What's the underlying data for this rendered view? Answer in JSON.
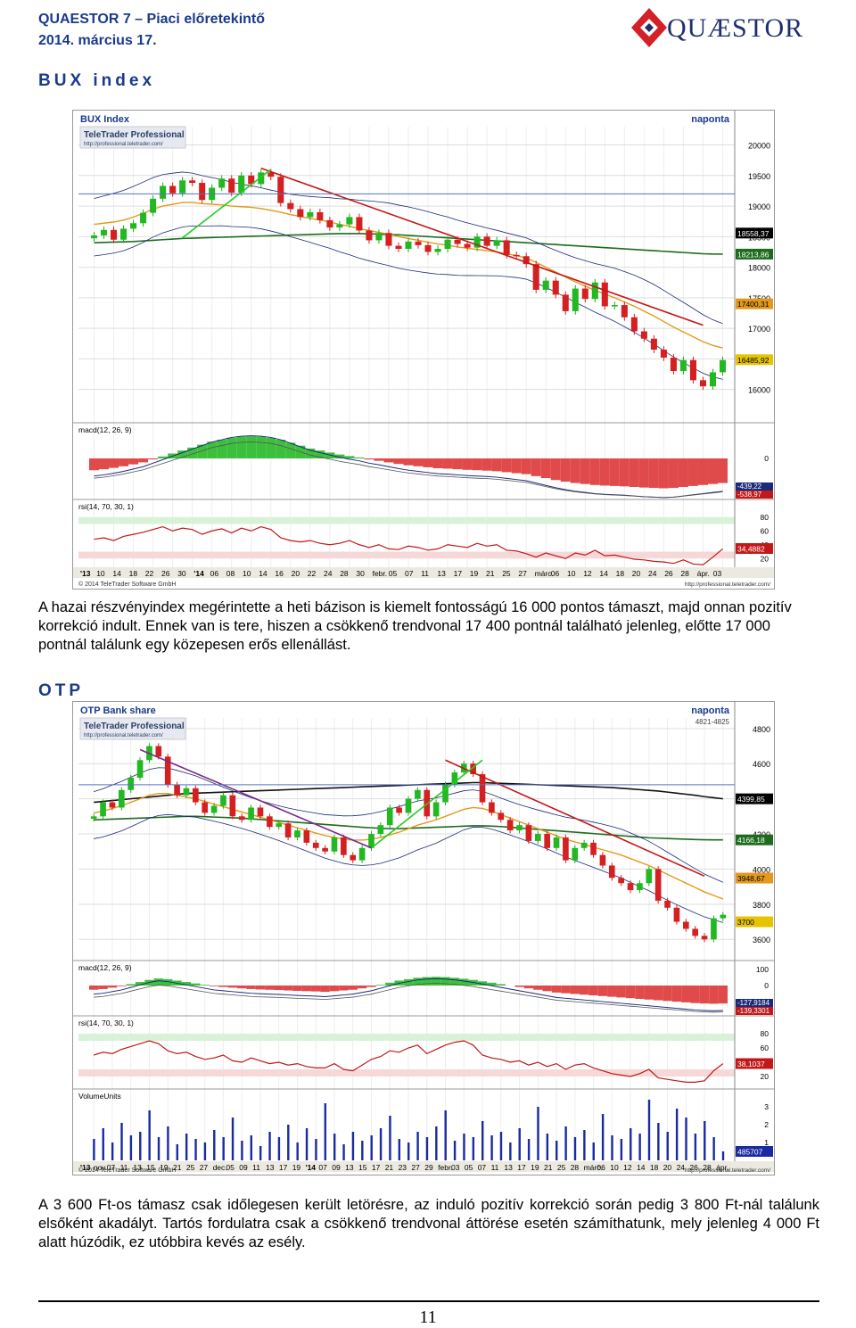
{
  "header": {
    "title": "QUAESTOR 7 – Piaci előretekintő",
    "date": "2014. március 17.",
    "logo_text": "QUÆSTOR"
  },
  "bux": {
    "section_title": "BUX index",
    "paragraph": "A hazai részvényindex megérintette a heti bázison is kiemelt fontosságú 16 000 pontos támaszt, majd onnan pozitív korrekció indult. Ennek van is tere, hiszen a csökkenő trendvonal 17 400 pontnál található jelenleg, előtte 17 000 pontnál találunk egy közepesen erős ellenállást."
  },
  "otp": {
    "section_title": "OTP",
    "paragraph": "A 3 600 Ft-os támasz csak időlegesen került letörésre, az induló pozitív korrekció során pedig 3 800 Ft-nál találunk elsőként akadályt. Tartós fordulatra csak a csökkenő trendvonal áttörése esetén számíthatunk, mely jelenleg 4 000 Ft alatt húzódik, ez utóbbira kevés az esély."
  },
  "page_number": "11",
  "chart_data": [
    {
      "type": "candlestick",
      "title": "BUX Index",
      "period": "naponta",
      "watermark": "TeleTrader Professional",
      "watermark_url": "http://professional.teletrader.com/",
      "price_ticks": [
        20000,
        19500,
        19000,
        18500,
        18000,
        17500,
        17000,
        16500,
        16000
      ],
      "price_labels": [
        "18558,37",
        "18213,86",
        "17400,31",
        "16485,92"
      ],
      "ylim": [
        15600,
        20300
      ],
      "closes": [
        18520,
        18610,
        18450,
        18630,
        18720,
        18890,
        19120,
        19330,
        19210,
        19420,
        19380,
        19100,
        19300,
        19450,
        19220,
        19500,
        19360,
        19550,
        19480,
        19050,
        18950,
        18820,
        18900,
        18770,
        18650,
        18700,
        18820,
        18600,
        18440,
        18560,
        18350,
        18300,
        18420,
        18360,
        18250,
        18300,
        18450,
        18380,
        18320,
        18500,
        18350,
        18440,
        18200,
        18180,
        18050,
        17630,
        17780,
        17550,
        17280,
        17650,
        17480,
        17750,
        17360,
        17380,
        17180,
        16950,
        16830,
        16650,
        16520,
        16300,
        16480,
        16150,
        16050,
        16280,
        16480
      ],
      "ma_orange": [
        18700,
        18720,
        18740,
        18770,
        18820,
        18880,
        18950,
        19000,
        19030,
        19060,
        19060,
        19040,
        19030,
        19020,
        19000,
        18990,
        18980,
        18960,
        18930,
        18900,
        18860,
        18830,
        18800,
        18770,
        18740,
        18700,
        18670,
        18630,
        18600,
        18570,
        18540,
        18500,
        18470,
        18440,
        18410,
        18380,
        18360,
        18330,
        18310,
        18290,
        18270,
        18250,
        18220,
        18190,
        18150,
        18080,
        18000,
        17920,
        17840,
        17760,
        17690,
        17620,
        17560,
        17500,
        17430,
        17360,
        17280,
        17200,
        17110,
        17020,
        16940,
        16860,
        16780,
        16720,
        16680
      ],
      "ma_green": [
        18400,
        18405,
        18410,
        18415,
        18420,
        18430,
        18440,
        18450,
        18460,
        18470,
        18475,
        18480,
        18485,
        18490,
        18495,
        18500,
        18505,
        18510,
        18515,
        18520,
        18525,
        18530,
        18535,
        18540,
        18545,
        18550,
        18550,
        18550,
        18545,
        18540,
        18535,
        18530,
        18520,
        18510,
        18500,
        18490,
        18480,
        18470,
        18460,
        18450,
        18440,
        18430,
        18420,
        18410,
        18400,
        18390,
        18380,
        18370,
        18360,
        18350,
        18340,
        18330,
        18320,
        18310,
        18300,
        18290,
        18280,
        18270,
        18260,
        18250,
        18240,
        18230,
        18220,
        18215,
        18214
      ],
      "macd_label": "macd(12, 26, 9)",
      "macd_ticks": [
        "0"
      ],
      "macd_values": [
        "-439,22",
        "-538,97"
      ],
      "macd_hist": [
        -60,
        -55,
        -48,
        -40,
        -30,
        -20,
        -5,
        10,
        25,
        40,
        55,
        70,
        85,
        95,
        105,
        110,
        112,
        110,
        105,
        95,
        80,
        65,
        50,
        40,
        30,
        20,
        12,
        5,
        -5,
        -12,
        -20,
        -28,
        -35,
        -40,
        -45,
        -50,
        -52,
        -55,
        -58,
        -60,
        -62,
        -65,
        -70,
        -75,
        -80,
        -90,
        -100,
        -110,
        -118,
        -125,
        -130,
        -135,
        -138,
        -140,
        -142,
        -145,
        -148,
        -150,
        -152,
        -150,
        -145,
        -140,
        -135,
        -130,
        -125
      ],
      "rsi_label": "rsi(14, 70, 30, 1)",
      "rsi_ticks": [
        80,
        60,
        40,
        20
      ],
      "rsi_value": "34,4882",
      "rsi": [
        48,
        50,
        46,
        52,
        55,
        58,
        62,
        66,
        60,
        64,
        62,
        55,
        60,
        63,
        57,
        64,
        60,
        66,
        62,
        50,
        46,
        44,
        46,
        42,
        40,
        42,
        46,
        40,
        36,
        40,
        34,
        33,
        38,
        36,
        32,
        34,
        40,
        38,
        36,
        42,
        38,
        40,
        32,
        31,
        27,
        22,
        28,
        24,
        20,
        28,
        25,
        32,
        24,
        25,
        22,
        19,
        18,
        16,
        15,
        13,
        18,
        12,
        11,
        22,
        34
      ],
      "x_labels": [
        "'13",
        "10",
        "14",
        "18",
        "22",
        "26",
        "30",
        "'14",
        "06",
        "08",
        "10",
        "14",
        "16",
        "20",
        "22",
        "24",
        "28",
        "30",
        "febr.",
        "05",
        "07",
        "11",
        "13",
        "17",
        "19",
        "21",
        "25",
        "27",
        "márc.",
        "06",
        "10",
        "12",
        "14",
        "18",
        "20",
        "24",
        "26",
        "28",
        "ápr.",
        "03"
      ],
      "copyright": "© 2014 TeleTrader Software GmbH",
      "source_url": "http://professional.teletrader.com/"
    },
    {
      "type": "candlestick",
      "title": "OTP Bank share",
      "period": "naponta",
      "watermark": "TeleTrader Professional",
      "watermark_url": "http://professional.teletrader.com/",
      "top_label": "4821-4825",
      "price_ticks": [
        4800,
        4600,
        4400,
        4200,
        4000,
        3800,
        3600
      ],
      "price_labels": [
        "4399,85",
        "4166,18",
        "3948,67",
        "3700"
      ],
      "ylim": [
        3520,
        4860
      ],
      "closes": [
        4300,
        4380,
        4350,
        4450,
        4520,
        4620,
        4700,
        4640,
        4480,
        4420,
        4460,
        4380,
        4320,
        4360,
        4420,
        4300,
        4280,
        4350,
        4300,
        4240,
        4260,
        4180,
        4220,
        4150,
        4120,
        4100,
        4180,
        4080,
        4050,
        4120,
        4200,
        4250,
        4350,
        4320,
        4400,
        4450,
        4300,
        4380,
        4480,
        4550,
        4600,
        4540,
        4380,
        4320,
        4280,
        4220,
        4250,
        4160,
        4200,
        4120,
        4180,
        4050,
        4120,
        4150,
        4080,
        4020,
        3950,
        3920,
        3880,
        3920,
        4000,
        3820,
        3780,
        3700,
        3660,
        3620,
        3600,
        3720,
        3740
      ],
      "ma_orange": [
        4320,
        4330,
        4345,
        4360,
        4380,
        4400,
        4420,
        4430,
        4430,
        4420,
        4410,
        4400,
        4385,
        4370,
        4355,
        4340,
        4325,
        4310,
        4295,
        4280,
        4265,
        4250,
        4235,
        4220,
        4205,
        4190,
        4180,
        4170,
        4165,
        4165,
        4170,
        4180,
        4195,
        4210,
        4230,
        4250,
        4265,
        4280,
        4300,
        4320,
        4340,
        4350,
        4345,
        4330,
        4310,
        4290,
        4270,
        4250,
        4230,
        4210,
        4190,
        4170,
        4155,
        4140,
        4125,
        4110,
        4095,
        4080,
        4060,
        4040,
        4020,
        3995,
        3970,
        3945,
        3920,
        3895,
        3870,
        3850,
        3830
      ],
      "ma_green": [
        4280,
        4282,
        4284,
        4286,
        4288,
        4290,
        4292,
        4294,
        4296,
        4298,
        4300,
        4300,
        4298,
        4296,
        4294,
        4292,
        4290,
        4286,
        4282,
        4278,
        4274,
        4270,
        4266,
        4262,
        4258,
        4254,
        4250,
        4246,
        4242,
        4238,
        4235,
        4232,
        4230,
        4230,
        4232,
        4234,
        4236,
        4238,
        4240,
        4242,
        4244,
        4246,
        4246,
        4244,
        4242,
        4238,
        4234,
        4230,
        4226,
        4222,
        4218,
        4214,
        4210,
        4206,
        4202,
        4198,
        4194,
        4190,
        4186,
        4182,
        4178,
        4176,
        4174,
        4172,
        4170,
        4168,
        4167,
        4166,
        4166
      ],
      "ma_black": [
        4380,
        4385,
        4390,
        4395,
        4400,
        4405,
        4410,
        4415,
        4420,
        4425,
        4430,
        4432,
        4434,
        4436,
        4438,
        4440,
        4442,
        4444,
        4446,
        4448,
        4450,
        4452,
        4454,
        4456,
        4458,
        4460,
        4462,
        4464,
        4466,
        4468,
        4470,
        4472,
        4474,
        4476,
        4478,
        4480,
        4482,
        4484,
        4486,
        4488,
        4490,
        4492,
        4492,
        4490,
        4488,
        4486,
        4484,
        4482,
        4480,
        4478,
        4476,
        4474,
        4472,
        4470,
        4468,
        4466,
        4464,
        4460,
        4456,
        4452,
        4448,
        4444,
        4438,
        4432,
        4426,
        4420,
        4412,
        4406,
        4400
      ],
      "macd_label": "macd(12, 26, 9)",
      "macd_ticks": [
        "100",
        "0"
      ],
      "macd_values": [
        "-127,9184",
        "-139,3301"
      ],
      "macd_hist": [
        -30,
        -25,
        -15,
        -5,
        10,
        25,
        40,
        50,
        45,
        35,
        25,
        15,
        5,
        -5,
        -10,
        -15,
        -20,
        -25,
        -28,
        -30,
        -32,
        -35,
        -38,
        -40,
        -42,
        -45,
        -40,
        -35,
        -30,
        -20,
        -10,
        5,
        20,
        35,
        45,
        55,
        60,
        62,
        60,
        55,
        48,
        40,
        30,
        20,
        10,
        0,
        -10,
        -20,
        -30,
        -40,
        -50,
        -55,
        -60,
        -65,
        -70,
        -75,
        -80,
        -85,
        -90,
        -95,
        -100,
        -105,
        -110,
        -115,
        -120,
        -125,
        -128,
        -130,
        -128
      ],
      "rsi_label": "rsi(14, 70, 30, 1)",
      "rsi_ticks": [
        80,
        60,
        40,
        20
      ],
      "rsi_value": "38,1037",
      "rsi": [
        50,
        54,
        52,
        58,
        62,
        66,
        70,
        66,
        56,
        52,
        54,
        48,
        44,
        46,
        50,
        42,
        40,
        46,
        42,
        38,
        40,
        36,
        38,
        34,
        32,
        32,
        38,
        30,
        28,
        36,
        44,
        48,
        56,
        54,
        60,
        64,
        52,
        58,
        64,
        68,
        70,
        64,
        50,
        46,
        44,
        40,
        42,
        36,
        40,
        34,
        38,
        30,
        36,
        38,
        32,
        28,
        24,
        22,
        20,
        24,
        30,
        18,
        16,
        14,
        12,
        12,
        14,
        28,
        38
      ],
      "volume_label": "VolumeUnits",
      "volume_ticks": [
        "3",
        "2",
        "1"
      ],
      "volume_value": "485707",
      "volume": [
        1.2,
        1.8,
        1.0,
        2.1,
        1.4,
        1.6,
        2.8,
        1.3,
        1.9,
        0.9,
        1.5,
        1.2,
        1.0,
        1.7,
        1.3,
        2.4,
        1.1,
        1.4,
        0.8,
        1.6,
        1.3,
        2.0,
        1.0,
        1.8,
        1.2,
        3.2,
        1.5,
        0.9,
        1.6,
        1.1,
        1.4,
        1.8,
        2.5,
        1.2,
        1.0,
        1.6,
        1.3,
        1.9,
        2.8,
        1.1,
        1.5,
        1.3,
        2.2,
        1.4,
        1.6,
        1.0,
        1.8,
        1.2,
        3.0,
        1.5,
        1.1,
        1.9,
        1.3,
        1.7,
        1.0,
        2.6,
        1.4,
        1.2,
        1.8,
        1.5,
        3.4,
        2.1,
        1.6,
        2.9,
        2.4,
        1.5,
        2.2,
        1.3,
        0.5
      ],
      "x_labels": [
        "'13",
        "nov.",
        "07",
        "11",
        "13",
        "15",
        "19",
        "21",
        "25",
        "27",
        "dec.",
        "05",
        "09",
        "11",
        "13",
        "17",
        "19",
        "'14",
        "07",
        "09",
        "13",
        "15",
        "17",
        "21",
        "23",
        "27",
        "29",
        "febr.",
        "03",
        "05",
        "07",
        "11",
        "13",
        "17",
        "19",
        "21",
        "25",
        "28",
        "márc.",
        "06",
        "10",
        "12",
        "14",
        "18",
        "20",
        "24",
        "26",
        "28",
        "ápr."
      ],
      "copyright": "© 2014 TeleTrader Software GmbH",
      "source_url": "http://professional.teletrader.com/"
    }
  ]
}
